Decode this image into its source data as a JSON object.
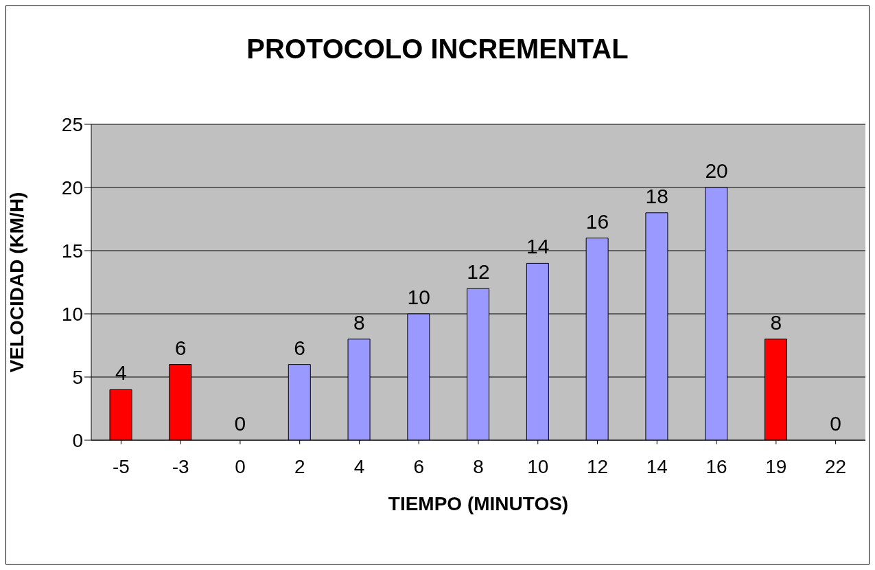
{
  "chart_data": {
    "type": "bar",
    "title": "PROTOCOLO INCREMENTAL",
    "xlabel": "TIEMPO (MINUTOS)",
    "ylabel": "VELOCIDAD (KM/H)",
    "categories": [
      "-5",
      "-3",
      "0",
      "2",
      "4",
      "6",
      "8",
      "10",
      "12",
      "14",
      "16",
      "19",
      "22"
    ],
    "values": [
      4,
      6,
      0,
      6,
      8,
      10,
      12,
      14,
      16,
      18,
      20,
      8,
      0
    ],
    "colors": [
      "#ff0000",
      "#ff0000",
      "#9999ff",
      "#9999ff",
      "#9999ff",
      "#9999ff",
      "#9999ff",
      "#9999ff",
      "#9999ff",
      "#9999ff",
      "#9999ff",
      "#ff0000",
      "#9999ff"
    ],
    "ylim": [
      0,
      25
    ],
    "yticks": [
      0,
      5,
      10,
      15,
      20,
      25
    ],
    "grid": "y",
    "data_labels": true
  }
}
